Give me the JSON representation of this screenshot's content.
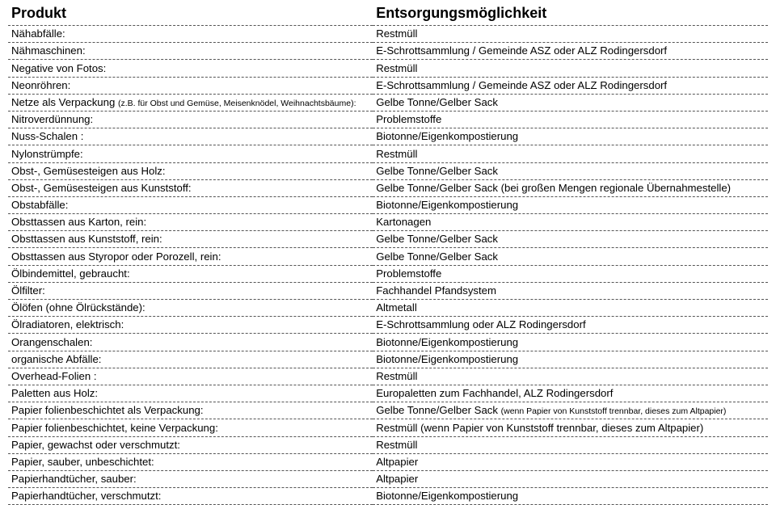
{
  "headers": {
    "product": "Produkt",
    "disposal": "Entsorgungsmöglichkeit"
  },
  "rows": [
    {
      "product": "Nähabfälle:",
      "disposal": "Restmüll"
    },
    {
      "product": "Nähmaschinen:",
      "disposal": "E-Schrottsammlung / Gemeinde ASZ oder ALZ Rodingersdorf"
    },
    {
      "product": "Negative von Fotos:",
      "disposal": "Restmüll"
    },
    {
      "product": "Neonröhren:",
      "disposal": "E-Schrottsammlung / Gemeinde ASZ oder ALZ Rodingersdorf"
    },
    {
      "product": "Netze als Verpackung ",
      "product_note": "(z.B. für Obst und Gemüse, Meisenknödel, Weihnachtsbäume):",
      "disposal": "Gelbe Tonne/Gelber Sack"
    },
    {
      "product": "Nitroverdünnung:",
      "disposal": "Problemstoffe"
    },
    {
      "product": "Nuss-Schalen :",
      "disposal": "Biotonne/Eigenkompostierung"
    },
    {
      "product": "Nylonstrümpfe:",
      "disposal": "Restmüll"
    },
    {
      "product": "Obst-, Gemüsesteigen aus Holz:",
      "disposal": "Gelbe Tonne/Gelber Sack"
    },
    {
      "product": "Obst-, Gemüsesteigen aus Kunststoff:",
      "disposal": "Gelbe Tonne/Gelber Sack (bei großen Mengen regionale Übernahmestelle)"
    },
    {
      "product": "Obstabfälle:",
      "disposal": "Biotonne/Eigenkompostierung"
    },
    {
      "product": "Obsttassen aus Karton, rein:",
      "disposal": "Kartonagen"
    },
    {
      "product": "Obsttassen aus Kunststoff, rein:",
      "disposal": "Gelbe Tonne/Gelber Sack"
    },
    {
      "product": "Obsttassen aus Styropor oder Porozell, rein:",
      "disposal": "Gelbe Tonne/Gelber Sack"
    },
    {
      "product": "Ölbindemittel, gebraucht:",
      "disposal": "Problemstoffe"
    },
    {
      "product": "Ölfilter:",
      "disposal": "Fachhandel Pfandsystem"
    },
    {
      "product": "Ölöfen (ohne Ölrückstände):",
      "disposal": "Altmetall"
    },
    {
      "product": "Ölradiatoren, elektrisch:",
      "disposal": "E-Schrottsammlung oder ALZ Rodingersdorf"
    },
    {
      "product": "Orangenschalen:",
      "disposal": "Biotonne/Eigenkompostierung"
    },
    {
      "product": "organische Abfälle:",
      "disposal": "Biotonne/Eigenkompostierung"
    },
    {
      "product": "Overhead-Folien :",
      "disposal": "Restmüll"
    },
    {
      "product": "Paletten aus Holz:",
      "disposal": "Europaletten zum Fachhandel, ALZ Rodingersdorf"
    },
    {
      "product": "Papier folienbeschichtet als Verpackung:",
      "disposal": " Gelbe Tonne/Gelber Sack ",
      "disposal_note": "(wenn Papier von Kunststoff trennbar, dieses zum Altpapier)"
    },
    {
      "product": "Papier folienbeschichtet, keine Verpackung:",
      "disposal": "Restmüll (wenn Papier von Kunststoff trennbar, dieses zum Altpapier)"
    },
    {
      "product": "Papier, gewachst oder verschmutzt:",
      "disposal": "Restmüll"
    },
    {
      "product": "Papier, sauber, unbeschichtet:",
      "disposal": "Altpapier"
    },
    {
      "product": "Papierhandtücher, sauber:",
      "disposal": "Altpapier"
    },
    {
      "product": "Papierhandtücher, verschmutzt:",
      "disposal": "Biotonne/Eigenkompostierung"
    }
  ]
}
